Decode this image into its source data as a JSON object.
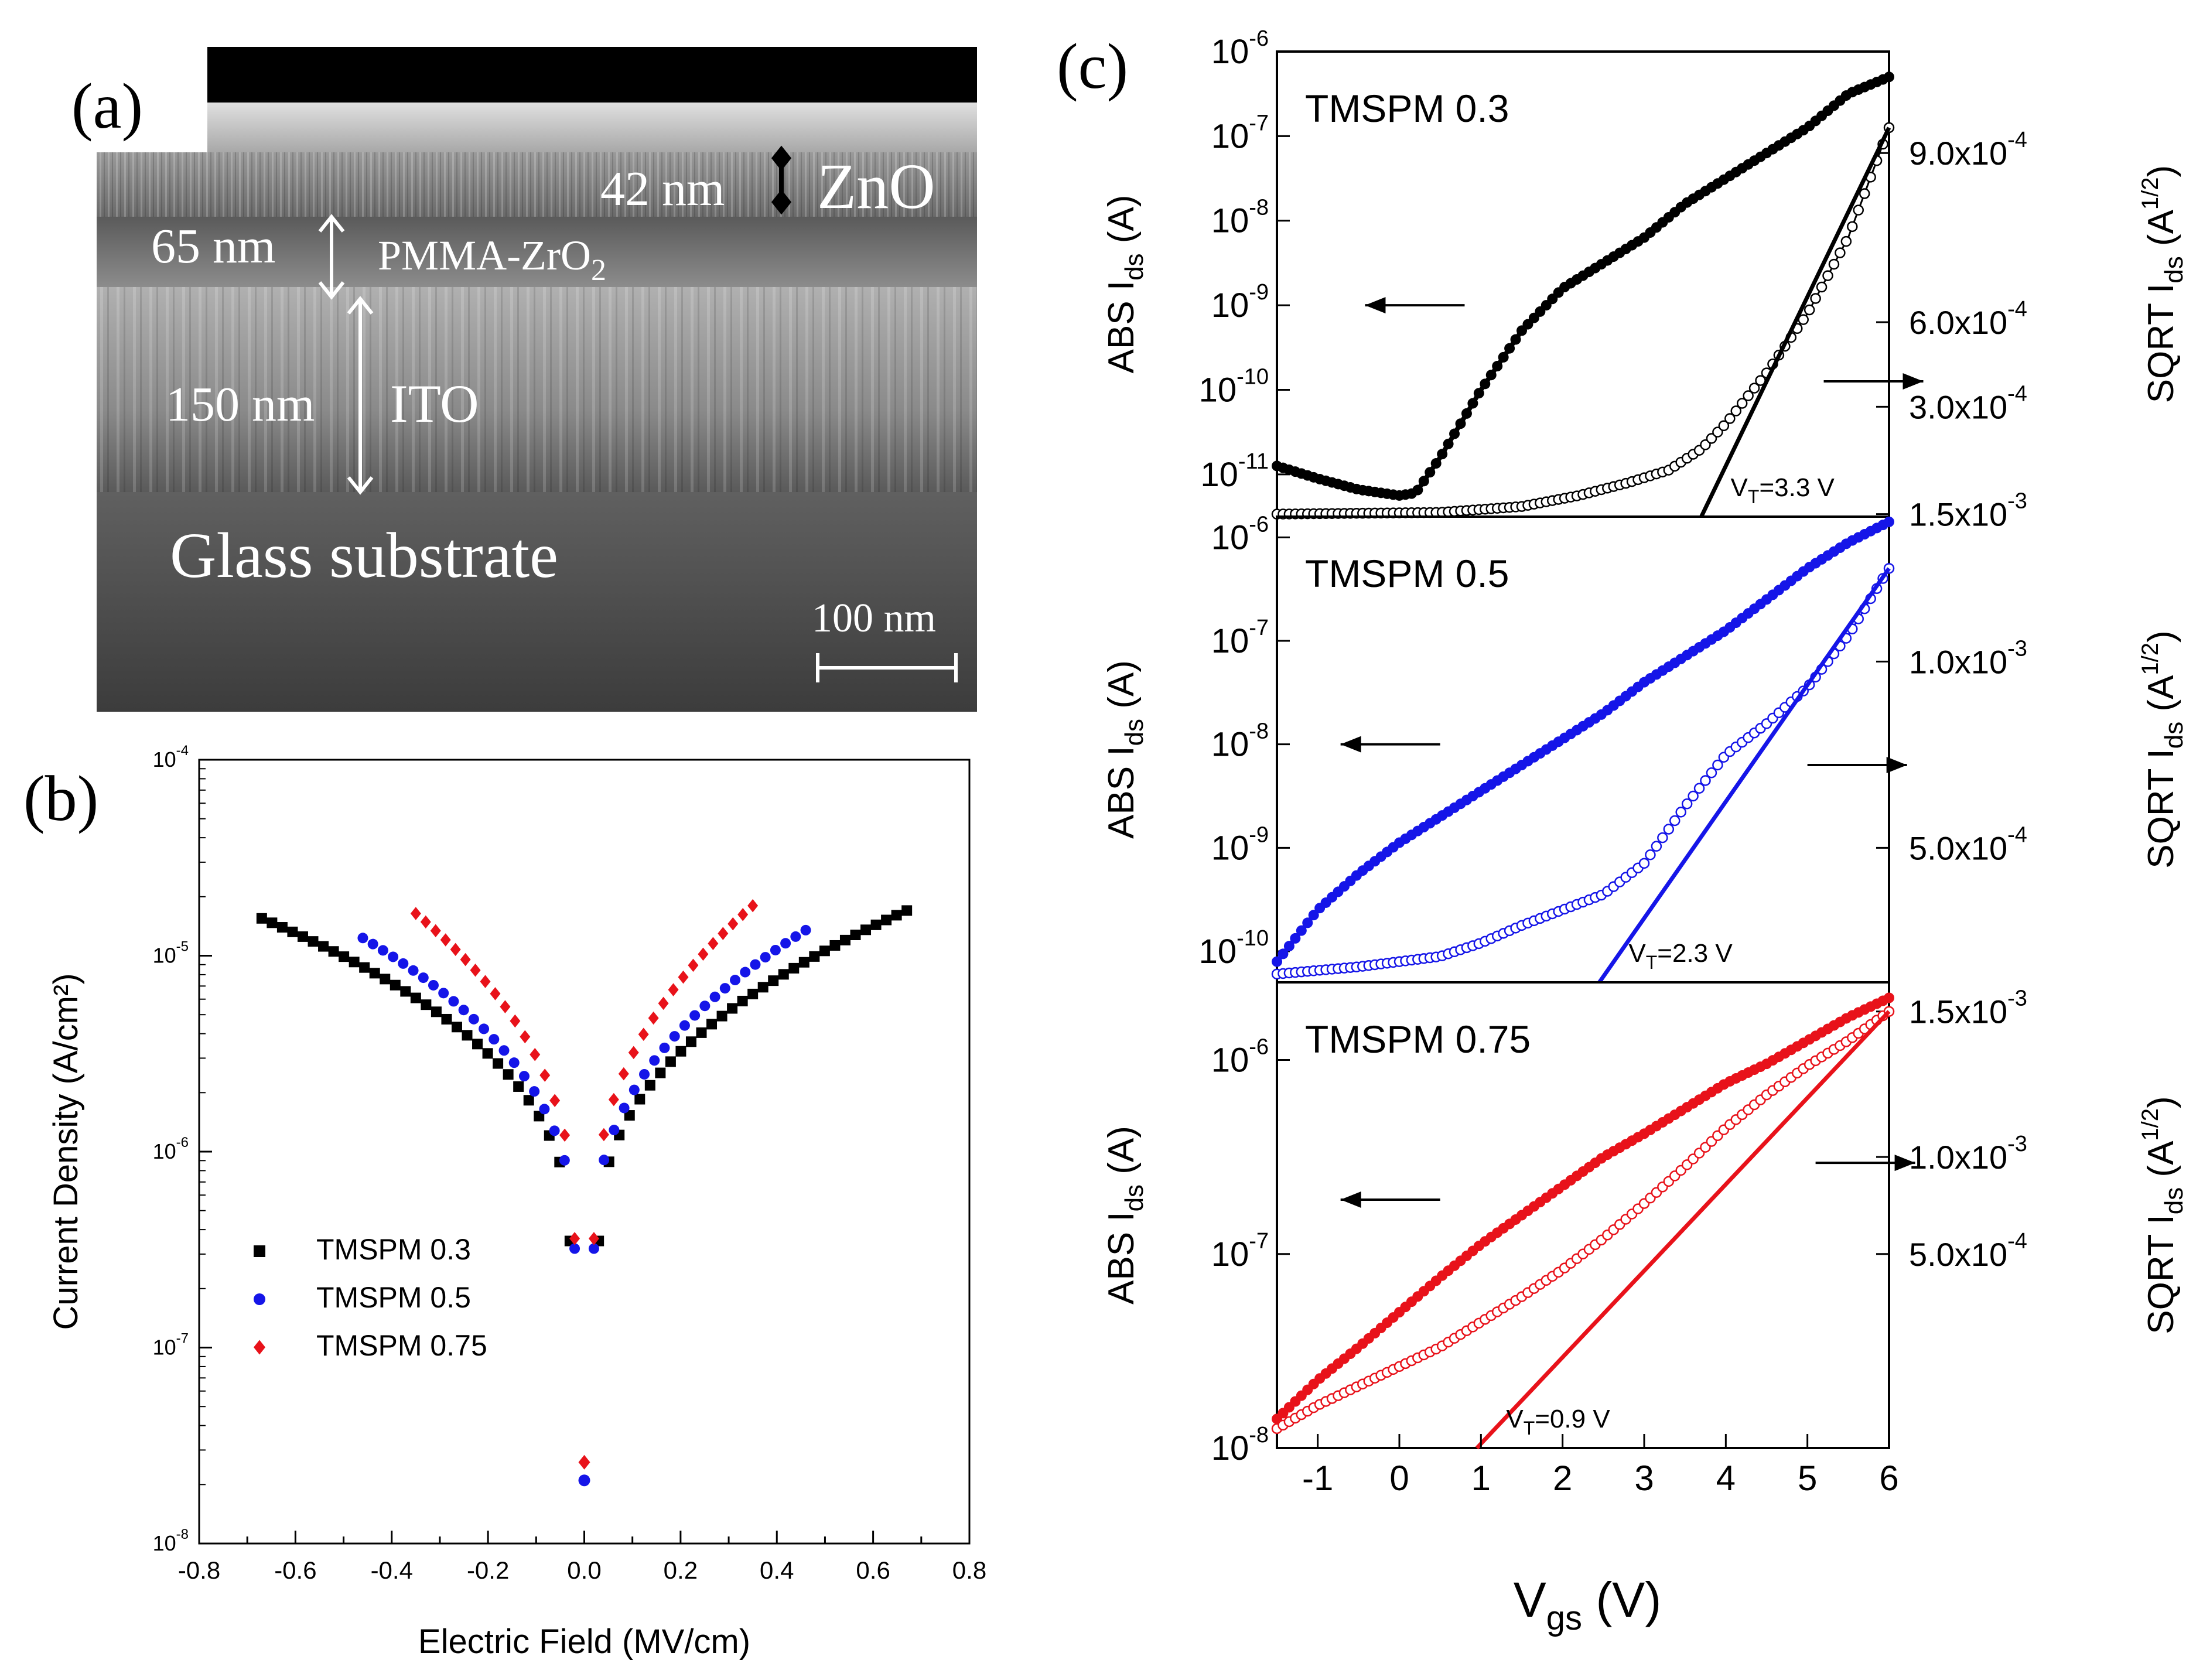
{
  "panels": {
    "a": {
      "label": "(a)",
      "sem": {
        "zno_thickness": "42 nm",
        "zno_label": "ZnO",
        "dielectric_thickness": "65 nm",
        "dielectric_label": "PMMA-ZrO",
        "dielectric_sub": "2",
        "ito_thickness": "150 nm",
        "ito_label": "ITO",
        "substrate_label": "Glass substrate",
        "scale_bar": "100 nm"
      }
    },
    "b": {
      "label": "(b)"
    },
    "c": {
      "label": "(c)"
    }
  },
  "chart_data": [
    {
      "id": "b",
      "type": "scatter",
      "title": "",
      "xlabel": "Electric Field (MV/cm)",
      "ylabel": "Current Density (A/cm²)",
      "xlim": [
        -0.8,
        0.8
      ],
      "ylim_log10": [
        -8,
        -4
      ],
      "xticks": [
        "-0.8",
        "-0.6",
        "-0.4",
        "-0.2",
        "0.0",
        "0.2",
        "0.4",
        "0.6",
        "0.8"
      ],
      "ytick_exponents": [
        "-8",
        "-7",
        "-6",
        "-5",
        "-4"
      ],
      "legend_position": "lower-left",
      "series": [
        {
          "name": "TMSPM 0.3",
          "color": "#000000",
          "marker": "square",
          "emax": 0.67,
          "jmax": 1.7e-05,
          "jmin": 3.5e-07
        },
        {
          "name": "TMSPM 0.5",
          "color": "#1515e8",
          "marker": "circle",
          "emax": 0.46,
          "jmax": 1.35e-05,
          "jmin": 3.2e-07,
          "outlier": [
            0.0,
            2.1e-08
          ]
        },
        {
          "name": "TMSPM 0.75",
          "color": "#e8121a",
          "marker": "diamond",
          "emax": 0.35,
          "jmax": 1.8e-05,
          "jmin": 3.6e-07,
          "outlier": [
            0.0,
            2.6e-08
          ]
        }
      ]
    },
    {
      "id": "c",
      "type": "line",
      "xlabel": "V",
      "xlabel_sub": "gs",
      "xlabel_unit": " (V)",
      "xlim": [
        -1.5,
        6
      ],
      "xticks": [
        "-1",
        "0",
        "1",
        "2",
        "3",
        "4",
        "5",
        "6"
      ],
      "ylabel_left": "ABS I",
      "ylabel_left_sub": "ds",
      "ylabel_left_unit": " (A)",
      "ylabel_right": "SQRT I",
      "ylabel_right_sub": "ds",
      "ylabel_right_unit": " (A",
      "ylabel_right_sup": "1/2",
      "ylabel_right_close": ")",
      "subplots": [
        {
          "name": "TMSPM 0.3",
          "color": "#000000",
          "vt_label": "V",
          "vt_sub": "T",
          "vt_value": "=3.3 V",
          "ylim_log10": [
            -11.5,
            -6
          ],
          "left_ticks": [
            "-11",
            "-10",
            "-9",
            "-8",
            "-7",
            "-6"
          ],
          "right_ticks": [
            "1.5x10",
            "3.0x10",
            "6.0x10",
            "9.0x10"
          ],
          "right_exps": [
            "-3",
            "-4",
            "-4",
            "-4"
          ],
          "right_tick_log10": [
            -11.47,
            -10.2,
            -9.2,
            -7.2
          ],
          "vt_line": [
            3.7,
            6.0
          ],
          "log_curve": [
            [
              -1.5,
              -10.9
            ],
            [
              -1.0,
              -11.05
            ],
            [
              -0.5,
              -11.18
            ],
            [
              0.0,
              -11.25
            ],
            [
              0.2,
              -11.22
            ],
            [
              0.5,
              -10.8
            ],
            [
              1.0,
              -10.0
            ],
            [
              1.5,
              -9.3
            ],
            [
              2.0,
              -8.8
            ],
            [
              2.5,
              -8.5
            ],
            [
              3.0,
              -8.2
            ],
            [
              3.5,
              -7.8
            ],
            [
              4.0,
              -7.5
            ],
            [
              4.5,
              -7.2
            ],
            [
              5.0,
              -6.9
            ],
            [
              5.5,
              -6.5
            ],
            [
              6.0,
              -6.3
            ]
          ],
          "sqrt_curve": [
            [
              -1.5,
              -11.47
            ],
            [
              0.5,
              -11.45
            ],
            [
              1.5,
              -11.38
            ],
            [
              2.2,
              -11.25
            ],
            [
              2.8,
              -11.1
            ],
            [
              3.3,
              -10.95
            ],
            [
              3.7,
              -10.7
            ],
            [
              4.0,
              -10.4
            ],
            [
              4.5,
              -9.8
            ],
            [
              5.0,
              -9.1
            ],
            [
              5.5,
              -8.2
            ],
            [
              6.0,
              -6.9
            ]
          ],
          "arrow_left": [
            0.8,
            -9.0
          ],
          "arrow_right": [
            5.2,
            -9.9
          ]
        },
        {
          "name": "TMSPM 0.5",
          "color": "#1515e8",
          "vt_label": "V",
          "vt_sub": "T",
          "vt_value": "=2.3 V",
          "ylim_log10": [
            -10.3,
            -5.8
          ],
          "left_ticks": [
            "-10",
            "-9",
            "-8",
            "-7",
            "-6"
          ],
          "right_ticks": [
            "5.0x10",
            "1.0x10"
          ],
          "right_exps": [
            "-4",
            "-3"
          ],
          "right_tick_log10": [
            -9.0,
            -7.2
          ],
          "vt_line": [
            2.45,
            6.0
          ],
          "log_curve": [
            [
              -1.5,
              -10.1
            ],
            [
              -1.0,
              -9.6
            ],
            [
              -0.5,
              -9.25
            ],
            [
              0.0,
              -8.95
            ],
            [
              0.5,
              -8.7
            ],
            [
              1.0,
              -8.45
            ],
            [
              1.5,
              -8.2
            ],
            [
              2.0,
              -7.95
            ],
            [
              2.5,
              -7.7
            ],
            [
              3.0,
              -7.4
            ],
            [
              3.5,
              -7.15
            ],
            [
              4.0,
              -6.9
            ],
            [
              4.5,
              -6.6
            ],
            [
              5.0,
              -6.3
            ],
            [
              5.5,
              -6.05
            ],
            [
              6.0,
              -5.85
            ]
          ],
          "sqrt_curve": [
            [
              -1.5,
              -10.22
            ],
            [
              -0.5,
              -10.15
            ],
            [
              0.5,
              -10.05
            ],
            [
              1.0,
              -9.92
            ],
            [
              1.5,
              -9.75
            ],
            [
              2.0,
              -9.6
            ],
            [
              2.5,
              -9.45
            ],
            [
              3.0,
              -9.15
            ],
            [
              3.5,
              -8.6
            ],
            [
              4.0,
              -8.1
            ],
            [
              4.5,
              -7.8
            ],
            [
              5.0,
              -7.45
            ],
            [
              5.5,
              -6.95
            ],
            [
              6.0,
              -6.3
            ]
          ],
          "arrow_left": [
            0.5,
            -8.0
          ],
          "arrow_right": [
            5.0,
            -8.2
          ]
        },
        {
          "name": "TMSPM 0.75",
          "color": "#e8121a",
          "vt_label": "V",
          "vt_sub": "T",
          "vt_value": "=0.9 V",
          "ylim_log10": [
            -8,
            -5.6
          ],
          "left_ticks": [
            "-8",
            "-7",
            "-6"
          ],
          "right_ticks": [
            "5.0x10",
            "1.0x10",
            "1.5x10"
          ],
          "right_exps": [
            "-4",
            "-3",
            "-3"
          ],
          "right_tick_log10": [
            -7.0,
            -6.5,
            -5.75
          ],
          "vt_line": [
            0.95,
            6.0
          ],
          "log_curve": [
            [
              -1.5,
              -7.85
            ],
            [
              -1.0,
              -7.65
            ],
            [
              -0.5,
              -7.48
            ],
            [
              0.0,
              -7.3
            ],
            [
              0.5,
              -7.12
            ],
            [
              1.0,
              -6.95
            ],
            [
              1.5,
              -6.8
            ],
            [
              2.0,
              -6.65
            ],
            [
              2.5,
              -6.5
            ],
            [
              3.0,
              -6.38
            ],
            [
              3.5,
              -6.25
            ],
            [
              4.0,
              -6.12
            ],
            [
              4.5,
              -6.02
            ],
            [
              5.0,
              -5.9
            ],
            [
              5.5,
              -5.78
            ],
            [
              6.0,
              -5.68
            ]
          ],
          "sqrt_curve": [
            [
              -1.5,
              -7.9
            ],
            [
              -1.0,
              -7.78
            ],
            [
              -0.5,
              -7.68
            ],
            [
              0.0,
              -7.58
            ],
            [
              0.5,
              -7.48
            ],
            [
              1.0,
              -7.35
            ],
            [
              1.5,
              -7.22
            ],
            [
              2.0,
              -7.08
            ],
            [
              2.5,
              -6.92
            ],
            [
              3.0,
              -6.74
            ],
            [
              3.5,
              -6.55
            ],
            [
              4.0,
              -6.35
            ],
            [
              4.5,
              -6.18
            ],
            [
              5.0,
              -6.03
            ],
            [
              5.5,
              -5.9
            ],
            [
              6.0,
              -5.75
            ]
          ],
          "arrow_left": [
            0.5,
            -6.72
          ],
          "arrow_right": [
            5.1,
            -6.53
          ]
        }
      ]
    }
  ]
}
